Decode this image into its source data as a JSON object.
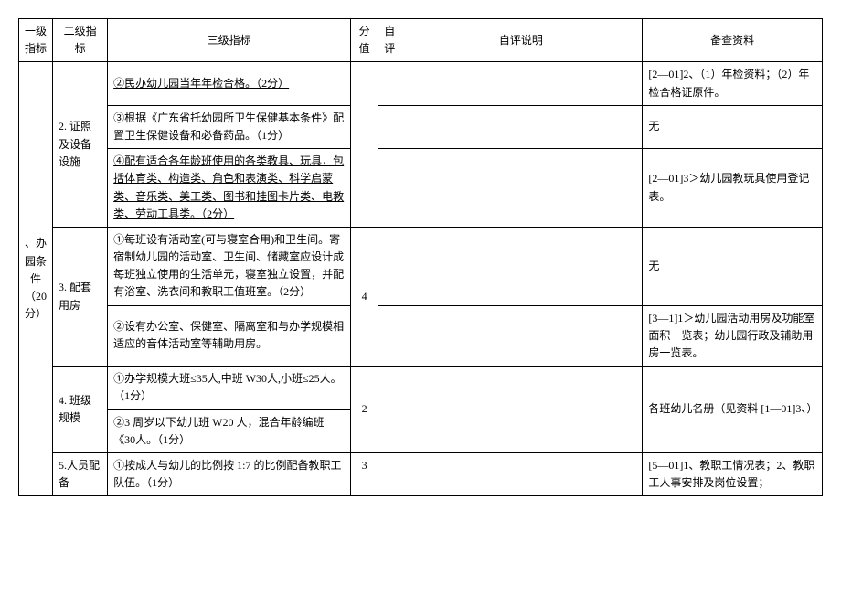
{
  "headers": {
    "level1": "一级指标",
    "level2": "二级指标",
    "level3": "三级指标",
    "score": "分值",
    "selfEval": "自评",
    "selfEvalDesc": "自评说明",
    "refMaterial": "备查资料"
  },
  "level1": {
    "label": "、办园条件（20分）"
  },
  "sections": {
    "s2": {
      "label": "2. 证照及设备设施",
      "rows": {
        "r1": {
          "level3": "②民办幼儿园当年年检合格。（2分）",
          "ref": "[2—01]2、（1）年检资料；（2）年检合格证原件。"
        },
        "r2": {
          "level3": "③根据《广东省托幼园所卫生保健基本条件》配置卫生保健设备和必备药品。（1分）",
          "ref": "无"
        },
        "r3": {
          "level3": "④配有适合各年龄班使用的各类教具、玩具，包括体育类、构造类、角色和表演类、科学启蒙类、音乐类、美工类、图书和挂图卡片类、电教类、劳动工具类。（2分）",
          "ref": "[2—01]3＞幼儿园教玩具使用登记表。"
        }
      }
    },
    "s3": {
      "label": "3. 配套用房",
      "score": "4",
      "rows": {
        "r1": {
          "level3": "①每班设有活动室(可与寝室合用)和卫生间。寄宿制幼儿园的活动室、卫生间、储藏室应设计成每班独立使用的生活单元，寝室独立设置，并配有浴室、洗衣间和教职工值班室。（2分）",
          "ref": "无"
        },
        "r2": {
          "level3": "②设有办公室、保健室、隔离室和与办学规模相适应的音体活动室等辅助用房。",
          "ref": "[3—1]1＞幼儿园活动用房及功能室面积一览表；幼儿园行政及辅助用房一览表。"
        }
      }
    },
    "s4": {
      "label": "4. 班级规模",
      "score": "2",
      "rows": {
        "r1": {
          "level3": "①办学规模大班≤35人,中班 W30人,小班≤25人。（1分）",
          "ref": "各班幼儿名册（见资料 [1—01]3、）"
        },
        "r2": {
          "level3": "②3 周岁以下幼儿班 W20 人，混合年龄编班《30人。（1分）"
        }
      }
    },
    "s5": {
      "label": "5.人员配备",
      "score": "3",
      "rows": {
        "r1": {
          "level3": "①按成人与幼儿的比例按 1:7 的比例配备教职工队伍。（1分）",
          "ref": "[5—01]1、教职工情况表；2、教职工人事安排及岗位设置；"
        }
      }
    }
  }
}
